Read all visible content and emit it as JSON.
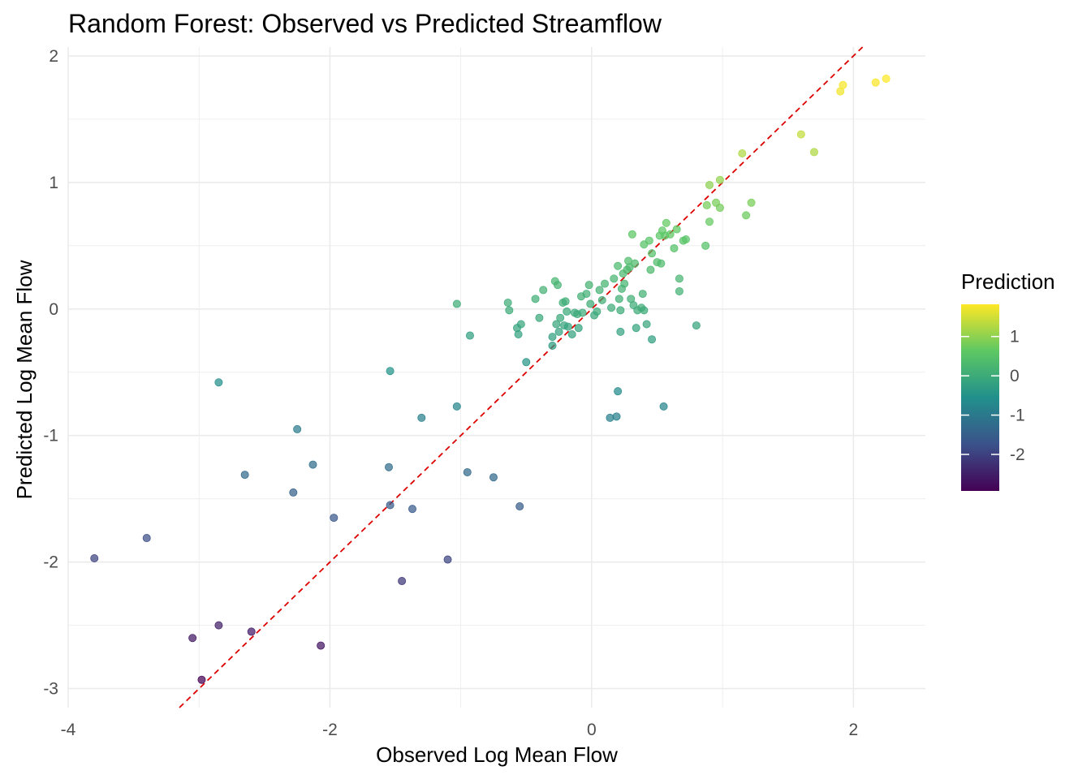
{
  "chart_data": {
    "type": "scatter",
    "title": "Random Forest: Observed vs Predicted Streamflow",
    "xlabel": "Observed Log Mean Flow",
    "ylabel": "Predicted Log Mean Flow",
    "xlim": [
      -4.0,
      2.55
    ],
    "ylim": [
      -3.15,
      2.07
    ],
    "x_ticks": [
      -4,
      -2,
      0,
      2
    ],
    "x_tick_labels": [
      "-4",
      "-2",
      "0",
      "2"
    ],
    "y_ticks": [
      -3,
      -2,
      -1,
      0,
      1,
      2
    ],
    "y_tick_labels": [
      "-3",
      "-2",
      "-1",
      "0",
      "1",
      "2"
    ],
    "grid": true,
    "reference_line": {
      "slope": 1,
      "intercept": 0,
      "color": "#e41a1c",
      "style": "dashed"
    },
    "legend": {
      "title": "Prediction",
      "placement": "right",
      "type": "colorbar",
      "range": [
        -2.93,
        1.82
      ],
      "ticks": [
        1,
        0,
        -1,
        -2
      ],
      "tick_labels": [
        "1",
        "0",
        "-1",
        "-2"
      ],
      "palette": [
        "#440154",
        "#3b528b",
        "#21908c",
        "#5dc863",
        "#fde725"
      ]
    },
    "points": [
      {
        "x": -3.8,
        "y": -1.97
      },
      {
        "x": -3.4,
        "y": -1.81
      },
      {
        "x": -3.05,
        "y": -2.6
      },
      {
        "x": -2.98,
        "y": -2.93
      },
      {
        "x": -2.85,
        "y": -2.5
      },
      {
        "x": -2.85,
        "y": -0.58
      },
      {
        "x": -2.65,
        "y": -1.31
      },
      {
        "x": -2.6,
        "y": -2.55
      },
      {
        "x": -2.28,
        "y": -1.45
      },
      {
        "x": -2.25,
        "y": -0.95
      },
      {
        "x": -2.13,
        "y": -1.23
      },
      {
        "x": -2.07,
        "y": -2.66
      },
      {
        "x": -1.97,
        "y": -1.65
      },
      {
        "x": -1.55,
        "y": -1.25
      },
      {
        "x": -1.54,
        "y": -1.55
      },
      {
        "x": -1.54,
        "y": -0.49
      },
      {
        "x": -1.45,
        "y": -2.15
      },
      {
        "x": -1.37,
        "y": -1.58
      },
      {
        "x": -1.3,
        "y": -0.86
      },
      {
        "x": -1.1,
        "y": -1.98
      },
      {
        "x": -1.03,
        "y": 0.04
      },
      {
        "x": -1.03,
        "y": -0.77
      },
      {
        "x": -0.95,
        "y": -1.29
      },
      {
        "x": -0.93,
        "y": -0.21
      },
      {
        "x": -0.75,
        "y": -1.33
      },
      {
        "x": -0.64,
        "y": 0.05
      },
      {
        "x": -0.63,
        "y": -0.01
      },
      {
        "x": -0.57,
        "y": -0.15
      },
      {
        "x": -0.56,
        "y": -0.2
      },
      {
        "x": -0.55,
        "y": -1.56
      },
      {
        "x": -0.54,
        "y": -0.12
      },
      {
        "x": -0.5,
        "y": -0.42
      },
      {
        "x": -0.43,
        "y": 0.08
      },
      {
        "x": -0.4,
        "y": -0.07
      },
      {
        "x": -0.37,
        "y": 0.15
      },
      {
        "x": -0.3,
        "y": -0.29
      },
      {
        "x": -0.3,
        "y": -0.22
      },
      {
        "x": -0.28,
        "y": 0.22
      },
      {
        "x": -0.27,
        "y": -0.12
      },
      {
        "x": -0.26,
        "y": 0.19
      },
      {
        "x": -0.25,
        "y": -0.18
      },
      {
        "x": -0.24,
        "y": -0.07
      },
      {
        "x": -0.22,
        "y": 0.05
      },
      {
        "x": -0.21,
        "y": -0.13
      },
      {
        "x": -0.2,
        "y": 0.06
      },
      {
        "x": -0.19,
        "y": -0.02
      },
      {
        "x": -0.18,
        "y": -0.14
      },
      {
        "x": -0.15,
        "y": -0.2
      },
      {
        "x": -0.13,
        "y": -0.03
      },
      {
        "x": -0.11,
        "y": -0.04
      },
      {
        "x": -0.1,
        "y": -0.15
      },
      {
        "x": -0.08,
        "y": 0.1
      },
      {
        "x": -0.07,
        "y": -0.03
      },
      {
        "x": -0.04,
        "y": 0.12
      },
      {
        "x": -0.02,
        "y": 0.19
      },
      {
        "x": -0.01,
        "y": 0.04
      },
      {
        "x": 0.02,
        "y": -0.05
      },
      {
        "x": 0.04,
        "y": -0.02
      },
      {
        "x": 0.06,
        "y": 0.15
      },
      {
        "x": 0.08,
        "y": 0.07
      },
      {
        "x": 0.1,
        "y": 0.2
      },
      {
        "x": 0.14,
        "y": -0.86
      },
      {
        "x": 0.15,
        "y": 0.01
      },
      {
        "x": 0.17,
        "y": 0.24
      },
      {
        "x": 0.19,
        "y": -0.85
      },
      {
        "x": 0.2,
        "y": -0.65
      },
      {
        "x": 0.2,
        "y": 0.34
      },
      {
        "x": 0.21,
        "y": 0.08
      },
      {
        "x": 0.22,
        "y": -0.01
      },
      {
        "x": 0.22,
        "y": -0.18
      },
      {
        "x": 0.23,
        "y": 0.16
      },
      {
        "x": 0.24,
        "y": 0.28
      },
      {
        "x": 0.25,
        "y": 0.2
      },
      {
        "x": 0.27,
        "y": 0.31
      },
      {
        "x": 0.28,
        "y": 0.38
      },
      {
        "x": 0.29,
        "y": 0.33
      },
      {
        "x": 0.3,
        "y": 0.08
      },
      {
        "x": 0.31,
        "y": 0.59
      },
      {
        "x": 0.32,
        "y": 0.03
      },
      {
        "x": 0.33,
        "y": 0.36
      },
      {
        "x": 0.34,
        "y": -0.15
      },
      {
        "x": 0.35,
        "y": -0.01
      },
      {
        "x": 0.38,
        "y": 0.01
      },
      {
        "x": 0.39,
        "y": 0.12
      },
      {
        "x": 0.4,
        "y": -0.01
      },
      {
        "x": 0.4,
        "y": 0.51
      },
      {
        "x": 0.42,
        "y": -0.12
      },
      {
        "x": 0.44,
        "y": 0.54
      },
      {
        "x": 0.45,
        "y": 0.31
      },
      {
        "x": 0.46,
        "y": 0.44
      },
      {
        "x": 0.46,
        "y": -0.24
      },
      {
        "x": 0.5,
        "y": 0.37
      },
      {
        "x": 0.52,
        "y": 0.58
      },
      {
        "x": 0.53,
        "y": 0.36
      },
      {
        "x": 0.54,
        "y": 0.62
      },
      {
        "x": 0.55,
        "y": -0.77
      },
      {
        "x": 0.56,
        "y": 0.58
      },
      {
        "x": 0.57,
        "y": 0.68
      },
      {
        "x": 0.6,
        "y": 0.59
      },
      {
        "x": 0.63,
        "y": 0.48
      },
      {
        "x": 0.65,
        "y": 0.63
      },
      {
        "x": 0.67,
        "y": 0.24
      },
      {
        "x": 0.67,
        "y": 0.14
      },
      {
        "x": 0.7,
        "y": 0.54
      },
      {
        "x": 0.72,
        "y": 0.55
      },
      {
        "x": 0.8,
        "y": -0.13
      },
      {
        "x": 0.87,
        "y": 0.5
      },
      {
        "x": 0.88,
        "y": 0.82
      },
      {
        "x": 0.9,
        "y": 0.98
      },
      {
        "x": 0.9,
        "y": 0.69
      },
      {
        "x": 0.95,
        "y": 0.84
      },
      {
        "x": 0.98,
        "y": 0.8
      },
      {
        "x": 0.98,
        "y": 1.02
      },
      {
        "x": 1.18,
        "y": 0.74
      },
      {
        "x": 1.22,
        "y": 0.84
      },
      {
        "x": 1.15,
        "y": 1.23
      },
      {
        "x": 1.6,
        "y": 1.38
      },
      {
        "x": 1.7,
        "y": 1.24
      },
      {
        "x": 1.9,
        "y": 1.72
      },
      {
        "x": 1.92,
        "y": 1.77
      },
      {
        "x": 2.17,
        "y": 1.79
      },
      {
        "x": 2.25,
        "y": 1.82
      }
    ]
  }
}
